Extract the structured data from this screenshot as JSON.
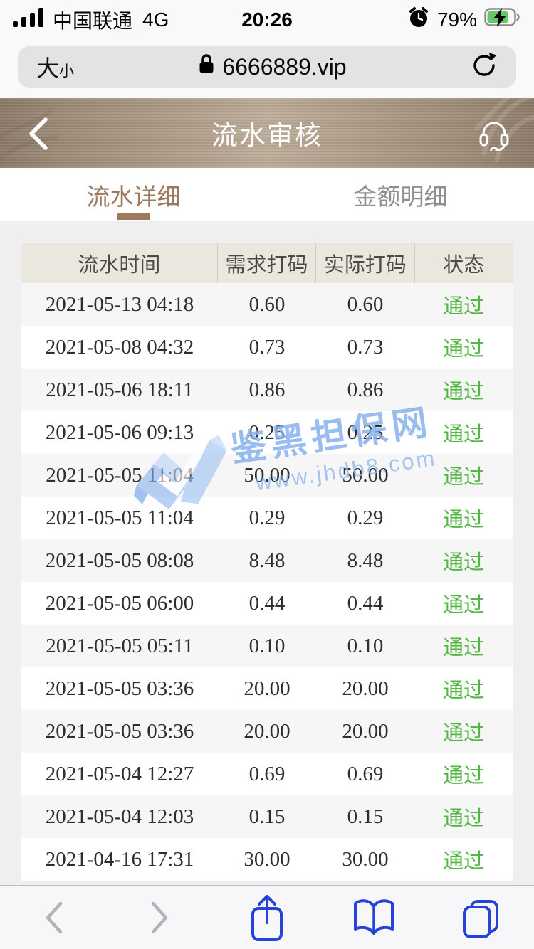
{
  "status_bar": {
    "carrier": "中国联通",
    "network": "4G",
    "time": "20:26",
    "battery_percent": "79%"
  },
  "url_bar": {
    "text_size_big": "大",
    "text_size_small": "小",
    "url": "6666889.vip"
  },
  "app_header": {
    "title": "流水审核"
  },
  "tabs": {
    "flow_detail": "流水详细",
    "amount_detail": "金额明细"
  },
  "table": {
    "columns": [
      "流水时间",
      "需求打码",
      "实际打码",
      "状态"
    ],
    "rows": [
      {
        "time": "2021-05-13 04:18",
        "required": "0.60",
        "actual": "0.60",
        "status": "通过"
      },
      {
        "time": "2021-05-08 04:32",
        "required": "0.73",
        "actual": "0.73",
        "status": "通过"
      },
      {
        "time": "2021-05-06 18:11",
        "required": "0.86",
        "actual": "0.86",
        "status": "通过"
      },
      {
        "time": "2021-05-06 09:13",
        "required": "0.25",
        "actual": "0.25",
        "status": "通过"
      },
      {
        "time": "2021-05-05 11:04",
        "required": "50.00",
        "actual": "50.00",
        "status": "通过"
      },
      {
        "time": "2021-05-05 11:04",
        "required": "0.29",
        "actual": "0.29",
        "status": "通过"
      },
      {
        "time": "2021-05-05 08:08",
        "required": "8.48",
        "actual": "8.48",
        "status": "通过"
      },
      {
        "time": "2021-05-05 06:00",
        "required": "0.44",
        "actual": "0.44",
        "status": "通过"
      },
      {
        "time": "2021-05-05 05:11",
        "required": "0.10",
        "actual": "0.10",
        "status": "通过"
      },
      {
        "time": "2021-05-05 03:36",
        "required": "20.00",
        "actual": "20.00",
        "status": "通过"
      },
      {
        "time": "2021-05-05 03:36",
        "required": "20.00",
        "actual": "20.00",
        "status": "通过"
      },
      {
        "time": "2021-05-04 12:27",
        "required": "0.69",
        "actual": "0.69",
        "status": "通过"
      },
      {
        "time": "2021-05-04 12:03",
        "required": "0.15",
        "actual": "0.15",
        "status": "通过"
      },
      {
        "time": "2021-04-16 17:31",
        "required": "30.00",
        "actual": "30.00",
        "status": "通过"
      }
    ]
  },
  "watermark": {
    "title": "鉴黑担保网",
    "url": "www.jhdb8.com"
  },
  "icons": {
    "signal": "signal-bars-icon",
    "alarm": "alarm-clock-icon",
    "battery": "battery-charging-icon",
    "lock": "lock-icon",
    "reload": "reload-icon",
    "back": "back-chevron-icon",
    "service": "headset-icon",
    "share": "share-icon",
    "bookmarks": "book-icon",
    "tabs": "tabs-icon"
  },
  "colors": {
    "accent_brown": "#9c7a5e",
    "pass_green": "#53b743",
    "toolbar_blue": "#2543d9",
    "watermark_blue": "#8ab5ee",
    "table_header_bg": "#eae7de",
    "header_bronze_mid": "#bdac99",
    "header_bronze_edge": "#8b7968"
  }
}
